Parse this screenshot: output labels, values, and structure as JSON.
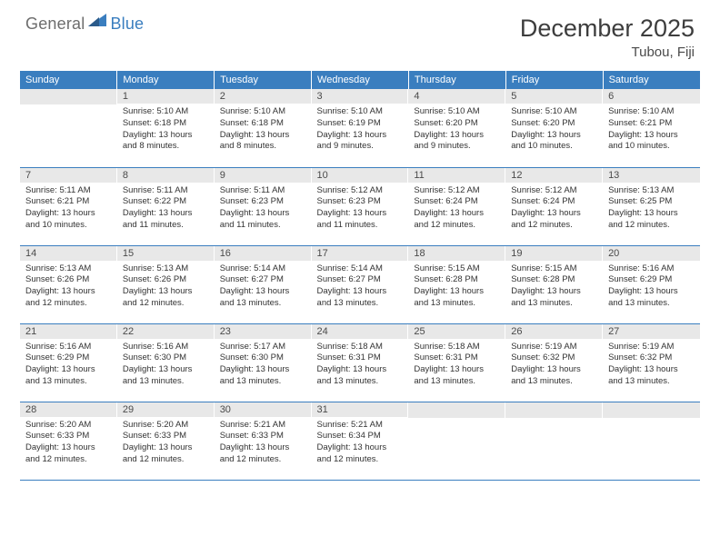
{
  "brand": {
    "general": "General",
    "blue": "Blue"
  },
  "title": "December 2025",
  "location": "Tubou, Fiji",
  "colors": {
    "header_bg": "#3a7ebf",
    "day_num_bg": "#e8e8e8",
    "row_border": "#3a7ebf",
    "logo_gray": "#6d6d6d",
    "logo_blue": "#3a7ebf"
  },
  "weekdays": [
    "Sunday",
    "Monday",
    "Tuesday",
    "Wednesday",
    "Thursday",
    "Friday",
    "Saturday"
  ],
  "weeks": [
    [
      {
        "n": "",
        "sr": "",
        "ss": "",
        "dl": ""
      },
      {
        "n": "1",
        "sr": "5:10 AM",
        "ss": "6:18 PM",
        "dl": "13 hours and 8 minutes."
      },
      {
        "n": "2",
        "sr": "5:10 AM",
        "ss": "6:18 PM",
        "dl": "13 hours and 8 minutes."
      },
      {
        "n": "3",
        "sr": "5:10 AM",
        "ss": "6:19 PM",
        "dl": "13 hours and 9 minutes."
      },
      {
        "n": "4",
        "sr": "5:10 AM",
        "ss": "6:20 PM",
        "dl": "13 hours and 9 minutes."
      },
      {
        "n": "5",
        "sr": "5:10 AM",
        "ss": "6:20 PM",
        "dl": "13 hours and 10 minutes."
      },
      {
        "n": "6",
        "sr": "5:10 AM",
        "ss": "6:21 PM",
        "dl": "13 hours and 10 minutes."
      }
    ],
    [
      {
        "n": "7",
        "sr": "5:11 AM",
        "ss": "6:21 PM",
        "dl": "13 hours and 10 minutes."
      },
      {
        "n": "8",
        "sr": "5:11 AM",
        "ss": "6:22 PM",
        "dl": "13 hours and 11 minutes."
      },
      {
        "n": "9",
        "sr": "5:11 AM",
        "ss": "6:23 PM",
        "dl": "13 hours and 11 minutes."
      },
      {
        "n": "10",
        "sr": "5:12 AM",
        "ss": "6:23 PM",
        "dl": "13 hours and 11 minutes."
      },
      {
        "n": "11",
        "sr": "5:12 AM",
        "ss": "6:24 PM",
        "dl": "13 hours and 12 minutes."
      },
      {
        "n": "12",
        "sr": "5:12 AM",
        "ss": "6:24 PM",
        "dl": "13 hours and 12 minutes."
      },
      {
        "n": "13",
        "sr": "5:13 AM",
        "ss": "6:25 PM",
        "dl": "13 hours and 12 minutes."
      }
    ],
    [
      {
        "n": "14",
        "sr": "5:13 AM",
        "ss": "6:26 PM",
        "dl": "13 hours and 12 minutes."
      },
      {
        "n": "15",
        "sr": "5:13 AM",
        "ss": "6:26 PM",
        "dl": "13 hours and 12 minutes."
      },
      {
        "n": "16",
        "sr": "5:14 AM",
        "ss": "6:27 PM",
        "dl": "13 hours and 13 minutes."
      },
      {
        "n": "17",
        "sr": "5:14 AM",
        "ss": "6:27 PM",
        "dl": "13 hours and 13 minutes."
      },
      {
        "n": "18",
        "sr": "5:15 AM",
        "ss": "6:28 PM",
        "dl": "13 hours and 13 minutes."
      },
      {
        "n": "19",
        "sr": "5:15 AM",
        "ss": "6:28 PM",
        "dl": "13 hours and 13 minutes."
      },
      {
        "n": "20",
        "sr": "5:16 AM",
        "ss": "6:29 PM",
        "dl": "13 hours and 13 minutes."
      }
    ],
    [
      {
        "n": "21",
        "sr": "5:16 AM",
        "ss": "6:29 PM",
        "dl": "13 hours and 13 minutes."
      },
      {
        "n": "22",
        "sr": "5:16 AM",
        "ss": "6:30 PM",
        "dl": "13 hours and 13 minutes."
      },
      {
        "n": "23",
        "sr": "5:17 AM",
        "ss": "6:30 PM",
        "dl": "13 hours and 13 minutes."
      },
      {
        "n": "24",
        "sr": "5:18 AM",
        "ss": "6:31 PM",
        "dl": "13 hours and 13 minutes."
      },
      {
        "n": "25",
        "sr": "5:18 AM",
        "ss": "6:31 PM",
        "dl": "13 hours and 13 minutes."
      },
      {
        "n": "26",
        "sr": "5:19 AM",
        "ss": "6:32 PM",
        "dl": "13 hours and 13 minutes."
      },
      {
        "n": "27",
        "sr": "5:19 AM",
        "ss": "6:32 PM",
        "dl": "13 hours and 13 minutes."
      }
    ],
    [
      {
        "n": "28",
        "sr": "5:20 AM",
        "ss": "6:33 PM",
        "dl": "13 hours and 12 minutes."
      },
      {
        "n": "29",
        "sr": "5:20 AM",
        "ss": "6:33 PM",
        "dl": "13 hours and 12 minutes."
      },
      {
        "n": "30",
        "sr": "5:21 AM",
        "ss": "6:33 PM",
        "dl": "13 hours and 12 minutes."
      },
      {
        "n": "31",
        "sr": "5:21 AM",
        "ss": "6:34 PM",
        "dl": "13 hours and 12 minutes."
      },
      {
        "n": "",
        "sr": "",
        "ss": "",
        "dl": ""
      },
      {
        "n": "",
        "sr": "",
        "ss": "",
        "dl": ""
      },
      {
        "n": "",
        "sr": "",
        "ss": "",
        "dl": ""
      }
    ]
  ],
  "labels": {
    "sunrise": "Sunrise:",
    "sunset": "Sunset:",
    "daylight": "Daylight:"
  }
}
